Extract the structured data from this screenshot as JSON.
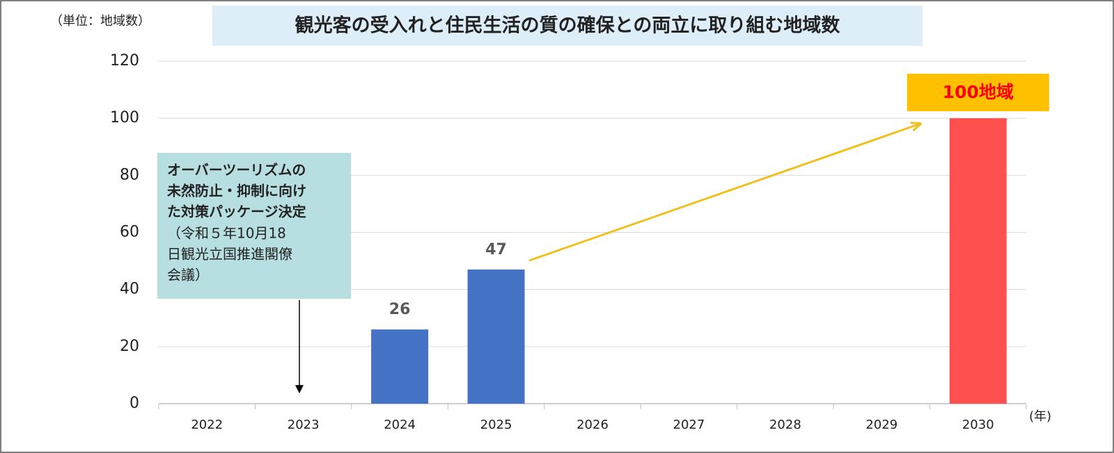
{
  "chart_data": {
    "type": "bar",
    "title": "観光客の受入れと住民生活の質の確保との両立に取り組む地域数",
    "y_unit_label": "（単位：地域数）",
    "x_unit_label": "(年)",
    "categories": [
      "2022",
      "2023",
      "2024",
      "2025",
      "2026",
      "2027",
      "2028",
      "2029",
      "2030"
    ],
    "values": [
      null,
      null,
      26,
      47,
      null,
      null,
      null,
      null,
      100
    ],
    "value_labels": [
      null,
      null,
      "26",
      "47",
      null,
      null,
      null,
      null,
      "100地域"
    ],
    "colors": [
      null,
      null,
      "#4472c4",
      "#4472c4",
      null,
      null,
      null,
      null,
      "#ff5050"
    ],
    "ylim": [
      0,
      120
    ],
    "yticks": [
      0,
      20,
      40,
      60,
      80,
      100,
      120
    ],
    "grid": true,
    "annotation": {
      "bold_lines": [
        "オーバーツーリズムの",
        "未然防止・抑制に向け",
        "た対策パッケージ決定"
      ],
      "note_lines": [
        "（令和５年10月18",
        "日観光立国推進閣僚",
        "会議）"
      ]
    }
  }
}
